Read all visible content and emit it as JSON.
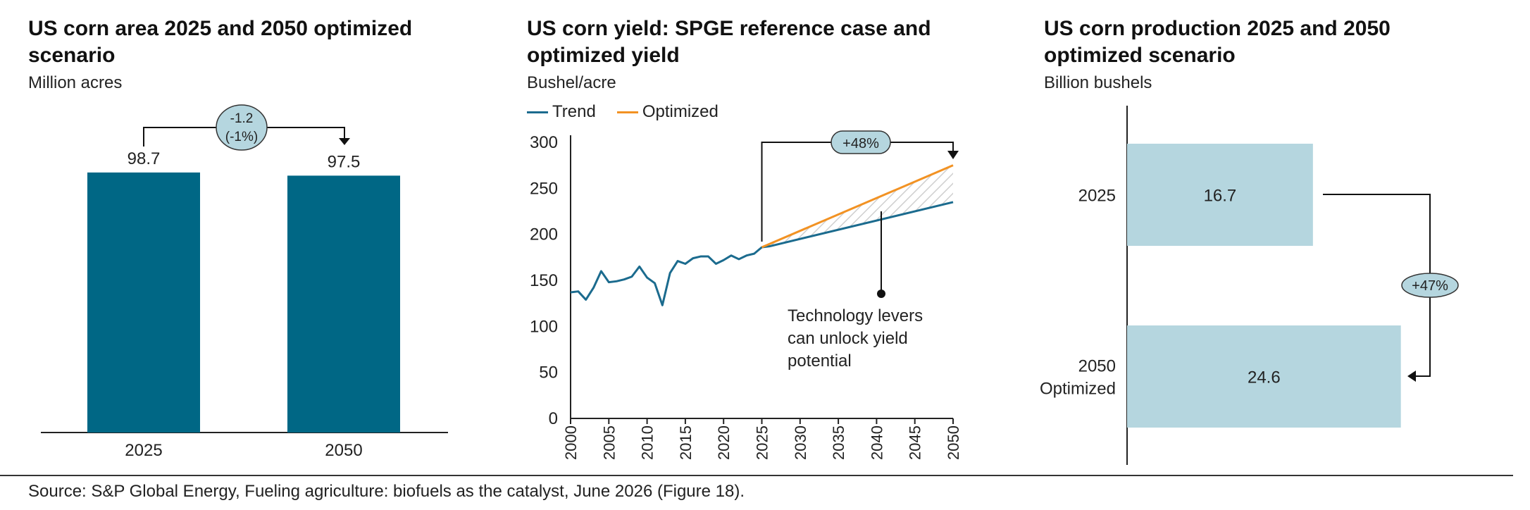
{
  "colors": {
    "teal_dark": "#006785",
    "light_blue": "#b5d6df",
    "trend": "#1b6b8e",
    "optimized": "#f29223",
    "pill": "#b5d6df"
  },
  "source": "Source: S&P Global Energy, Fueling agriculture: biofuels as the catalyst, June 2026 (Figure 18).",
  "chart_data": [
    {
      "type": "bar",
      "title": "US corn area 2025 and 2050 optimized scenario",
      "subtitle": "Million acres",
      "categories": [
        "2025",
        "2050"
      ],
      "values": [
        98.7,
        97.5
      ],
      "value_labels": [
        "98.7",
        "97.5"
      ],
      "annotation": {
        "line1": "-1.2",
        "line2": "(-1%)"
      },
      "ylim": [
        0,
        100
      ]
    },
    {
      "type": "line",
      "title": "US corn yield:  SPGE reference case and optimized yield",
      "subtitle": "Bushel/acre",
      "ylim": [
        0,
        300
      ],
      "xlim": [
        2000,
        2050
      ],
      "yticks": [
        "0",
        "50",
        "100",
        "150",
        "200",
        "250",
        "300"
      ],
      "ytick_values": [
        0,
        50,
        100,
        150,
        200,
        250,
        300
      ],
      "xticks": [
        "2000",
        "2005",
        "2010",
        "2015",
        "2020",
        "2025",
        "2030",
        "2035",
        "2040",
        "2045",
        "2050"
      ],
      "xtick_values": [
        2000,
        2005,
        2010,
        2015,
        2020,
        2025,
        2030,
        2035,
        2040,
        2045,
        2050
      ],
      "series": [
        {
          "name": "Trend",
          "color": "#1b6b8e",
          "x": [
            2000,
            2001,
            2002,
            2003,
            2004,
            2005,
            2006,
            2007,
            2008,
            2009,
            2010,
            2011,
            2012,
            2013,
            2014,
            2015,
            2016,
            2017,
            2018,
            2019,
            2020,
            2021,
            2022,
            2023,
            2024,
            2025,
            2026,
            2050
          ],
          "y": [
            137,
            138,
            129,
            142,
            160,
            148,
            149,
            151,
            154,
            165,
            153,
            147,
            123,
            158,
            171,
            168,
            174,
            176,
            176,
            168,
            172,
            177,
            173,
            177,
            179,
            186,
            187,
            235
          ]
        },
        {
          "name": "Optimized",
          "color": "#f29223",
          "x": [
            2025,
            2050
          ],
          "y": [
            186,
            275
          ]
        }
      ],
      "annotation_pill": "+48%",
      "annotation_text": [
        "Technology levers",
        "can unlock yield",
        "potential"
      ]
    },
    {
      "type": "bar",
      "orientation": "horizontal",
      "title": "US corn production 2025 and 2050 optimized scenario",
      "subtitle": "Billion bushels",
      "categories": [
        "2025",
        "2050 Optimized"
      ],
      "category_lines": [
        [
          "2025"
        ],
        [
          "2050",
          "Optimized"
        ]
      ],
      "values": [
        16.7,
        24.6
      ],
      "value_labels": [
        "16.7",
        "24.6"
      ],
      "annotation_pill": "+47%",
      "xlim": [
        0,
        25
      ]
    }
  ]
}
